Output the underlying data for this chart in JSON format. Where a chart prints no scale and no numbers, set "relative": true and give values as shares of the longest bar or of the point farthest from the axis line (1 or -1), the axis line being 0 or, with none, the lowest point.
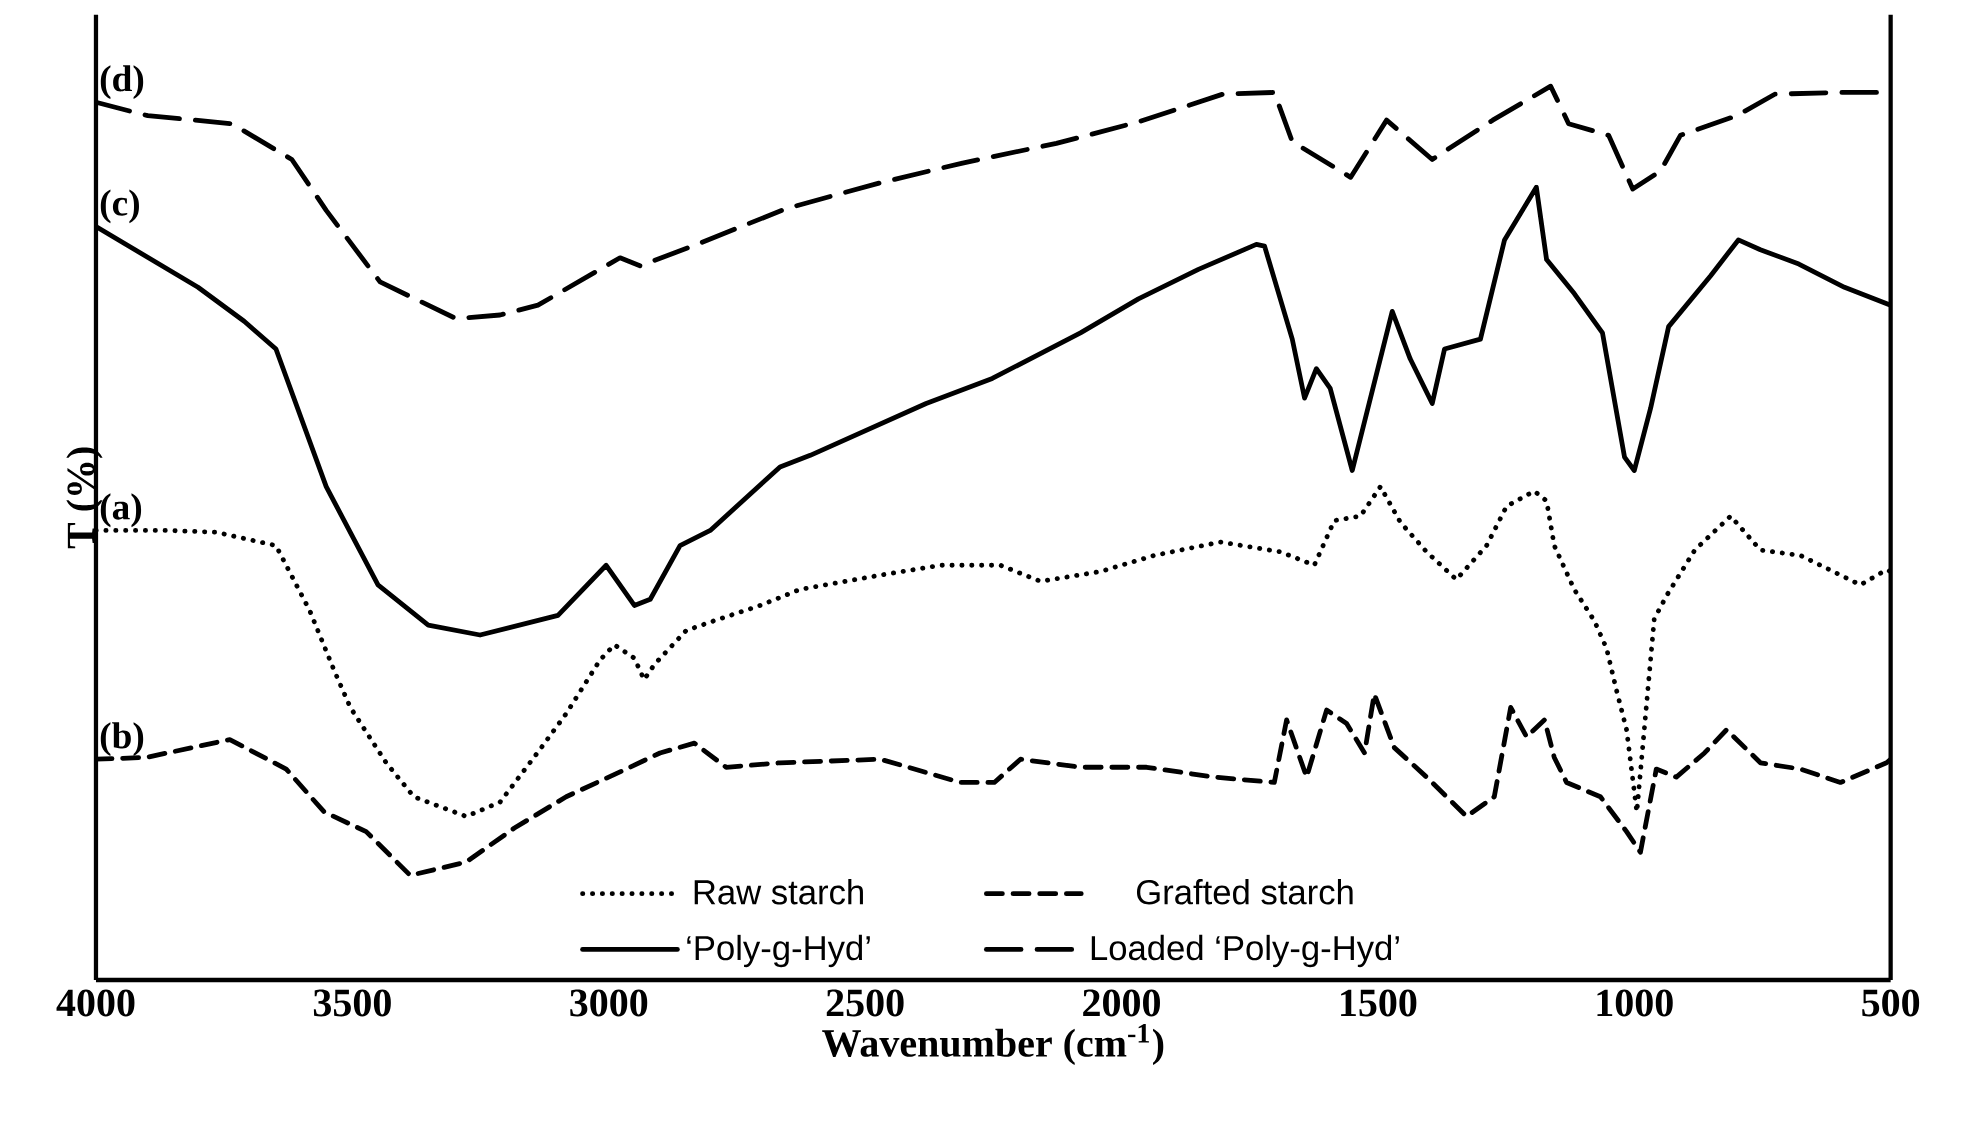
{
  "chart_data": {
    "type": "line",
    "xlabel": "Wavenumber (cm$^{-1}$)",
    "ylabel": "T (%)",
    "relative": true,
    "xlim": [
      4000,
      500
    ],
    "xticks": [
      4000,
      3500,
      3000,
      2500,
      2000,
      1500,
      1000,
      500
    ],
    "legend": "bottom",
    "grid": false,
    "marker": "none",
    "annotations": [
      "(a)",
      "(b)",
      "(c)",
      "(d)"
    ],
    "series": [
      {
        "name": "Raw starch",
        "color": "#000000",
        "line_style": "dotted",
        "x": [
          4000,
          3863,
          3766,
          3649,
          3583,
          3536,
          3504,
          3434,
          3380,
          3278,
          3212,
          3134,
          3083,
          3017,
          2989,
          2950,
          2931,
          2911,
          2849,
          2794,
          2705,
          2627,
          2470,
          2353,
          2236,
          2158,
          2041,
          1936,
          1807,
          1690,
          1624,
          1585,
          1534,
          1495,
          1456,
          1405,
          1347,
          1288,
          1249,
          1195,
          1171,
          1156,
          1117,
          1078,
          1054,
          1035,
          1015,
          995,
          961,
          937,
          882,
          812,
          754,
          676,
          598,
          559,
          508,
          500
        ],
        "values": [
          0.503,
          0.503,
          0.501,
          0.486,
          0.413,
          0.347,
          0.305,
          0.243,
          0.205,
          0.183,
          0.199,
          0.258,
          0.298,
          0.358,
          0.375,
          0.36,
          0.336,
          0.353,
          0.391,
          0.402,
          0.419,
          0.437,
          0.453,
          0.464,
          0.464,
          0.446,
          0.457,
          0.475,
          0.49,
          0.479,
          0.464,
          0.514,
          0.519,
          0.552,
          0.512,
          0.479,
          0.448,
          0.486,
          0.53,
          0.547,
          0.536,
          0.486,
          0.437,
          0.402,
          0.371,
          0.325,
          0.28,
          0.188,
          0.404,
          0.43,
          0.481,
          0.519,
          0.481,
          0.475,
          0.453,
          0.442,
          0.459,
          0.457
        ]
      },
      {
        "name": "Grafted starch",
        "color": "#000000",
        "line_style": "dashed",
        "x": [
          4000,
          3902,
          3739,
          3629,
          3555,
          3473,
          3387,
          3278,
          3184,
          3083,
          2966,
          2900,
          2833,
          2771,
          2666,
          2470,
          2314,
          2248,
          2197,
          2080,
          1951,
          1819,
          1702,
          1678,
          1639,
          1600,
          1561,
          1526,
          1507,
          1468,
          1405,
          1327,
          1273,
          1241,
          1210,
          1175,
          1156,
          1132,
          1066,
          1015,
          988,
          957,
          918,
          863,
          820,
          754,
          676,
          598,
          508,
          500
        ],
        "values": [
          0.247,
          0.249,
          0.269,
          0.236,
          0.188,
          0.166,
          0.117,
          0.132,
          0.17,
          0.205,
          0.236,
          0.254,
          0.265,
          0.238,
          0.243,
          0.247,
          0.221,
          0.221,
          0.247,
          0.238,
          0.238,
          0.227,
          0.221,
          0.291,
          0.227,
          0.302,
          0.287,
          0.254,
          0.32,
          0.26,
          0.227,
          0.183,
          0.205,
          0.305,
          0.272,
          0.291,
          0.249,
          0.221,
          0.205,
          0.166,
          0.143,
          0.236,
          0.227,
          0.254,
          0.28,
          0.243,
          0.236,
          0.221,
          0.243,
          0.247
        ]
      },
      {
        "name": "‘Poly-g-Hyd’",
        "color": "#000000",
        "line_style": "solid",
        "x": [
          4000,
          3801,
          3711,
          3649,
          3551,
          3450,
          3352,
          3251,
          3099,
          3005,
          2950,
          2919,
          2861,
          2802,
          2666,
          2607,
          2381,
          2252,
          2080,
          1967,
          1850,
          1737,
          1721,
          1667,
          1643,
          1620,
          1593,
          1550,
          1472,
          1437,
          1394,
          1370,
          1300,
          1253,
          1191,
          1171,
          1117,
          1062,
          1019,
          1000,
          968,
          933,
          851,
          797,
          754,
          679,
          590,
          500
        ],
        "values": [
          0.843,
          0.775,
          0.737,
          0.706,
          0.552,
          0.442,
          0.397,
          0.386,
          0.408,
          0.464,
          0.419,
          0.426,
          0.486,
          0.503,
          0.574,
          0.587,
          0.645,
          0.673,
          0.724,
          0.762,
          0.795,
          0.823,
          0.821,
          0.717,
          0.651,
          0.684,
          0.662,
          0.57,
          0.748,
          0.695,
          0.645,
          0.706,
          0.717,
          0.828,
          0.887,
          0.806,
          0.768,
          0.724,
          0.585,
          0.57,
          0.64,
          0.731,
          0.788,
          0.828,
          0.817,
          0.801,
          0.775,
          0.755
        ]
      },
      {
        "name": "Loaded ‘Poly-g-Hyd’",
        "color": "#000000",
        "line_style": "dashed",
        "x": [
          4000,
          3899,
          3735,
          3618,
          3551,
          3446,
          3298,
          3212,
          3138,
          2978,
          2939,
          2837,
          2654,
          2470,
          2310,
          2127,
          1967,
          1803,
          1702,
          1667,
          1553,
          1483,
          1394,
          1276,
          1163,
          1128,
          1050,
          1003,
          949,
          910,
          800,
          726,
          601,
          500
        ],
        "values": [
          0.982,
          0.967,
          0.958,
          0.918,
          0.861,
          0.781,
          0.74,
          0.744,
          0.755,
          0.808,
          0.799,
          0.821,
          0.863,
          0.892,
          0.914,
          0.936,
          0.96,
          0.991,
          0.993,
          0.938,
          0.898,
          0.962,
          0.918,
          0.962,
          1.0,
          0.958,
          0.945,
          0.885,
          0.905,
          0.945,
          0.967,
          0.991,
          0.993,
          0.993
        ]
      }
    ]
  }
}
